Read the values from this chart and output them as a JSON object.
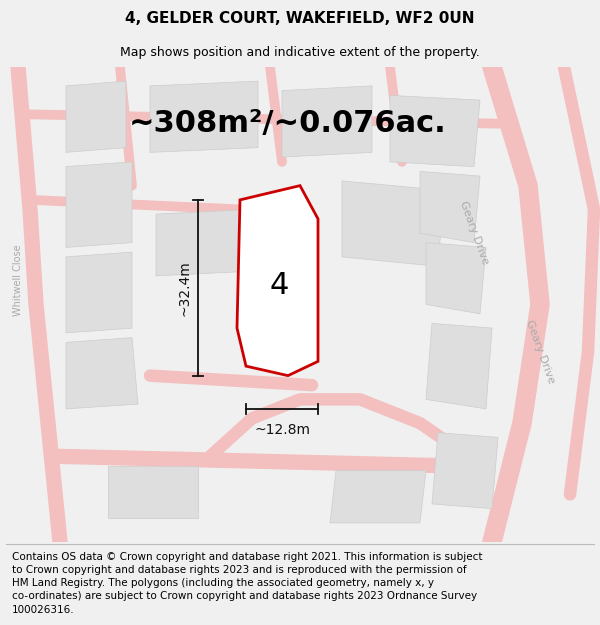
{
  "title": "4, GELDER COURT, WAKEFIELD, WF2 0UN",
  "subtitle": "Map shows position and indicative extent of the property.",
  "area_text": "~308m²/~0.076ac.",
  "dim_height": "~32.4m",
  "dim_width": "~12.8m",
  "plot_label": "4",
  "footer_line1": "Contains OS data © Crown copyright and database right 2021. This information is subject",
  "footer_line2": "to Crown copyright and database rights 2023 and is reproduced with the permission of",
  "footer_line3": "HM Land Registry. The polygons (including the associated geometry, namely x, y",
  "footer_line4": "co-ordinates) are subject to Crown copyright and database rights 2023 Ordnance Survey",
  "footer_line5": "100026316.",
  "bg_color": "#f0f0f0",
  "road_color": "#f4bfbf",
  "block_color": "#dedede",
  "block_edge": "#cccccc",
  "red_color": "#cc0000",
  "dim_color": "#111111",
  "label_color": "#aaaaaa",
  "title_fontsize": 11,
  "subtitle_fontsize": 9,
  "area_fontsize": 22,
  "dim_fontsize": 10,
  "footer_fontsize": 7.5,
  "road_label_fontsize": 8,
  "plot_number_fontsize": 22
}
